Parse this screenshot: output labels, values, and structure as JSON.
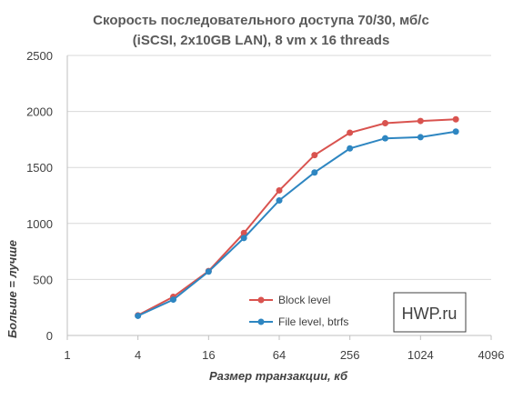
{
  "chart_data": {
    "type": "line",
    "title": [
      "Скорость последовательного доступа 70/30, мб/с",
      "(iSCSI, 2x10GB LAN), 8 vm x 16 threads"
    ],
    "xlabel": "Размер транзакции, кб",
    "ylabel": "Больше = лучше",
    "x_scale": "log2",
    "xlim": [
      1,
      4096
    ],
    "x_ticks": [
      1,
      4,
      16,
      64,
      256,
      1024,
      4096
    ],
    "x_tick_labels": [
      "1",
      "4",
      "16",
      "64",
      "256",
      "1024",
      "4096"
    ],
    "ylim": [
      0,
      2500
    ],
    "y_ticks": [
      0,
      500,
      1000,
      1500,
      2000,
      2500
    ],
    "y_tick_labels": [
      "0",
      "500",
      "1000",
      "1500",
      "2000",
      "2500"
    ],
    "grid": "horizontal",
    "legend": "bottom-center",
    "x": [
      4,
      8,
      16,
      32,
      64,
      128,
      256,
      512,
      1024,
      2048
    ],
    "series": [
      {
        "name": "Block level",
        "color": "#d9534f",
        "values": [
          180,
          345,
          575,
          915,
          1295,
          1610,
          1810,
          1895,
          1915,
          1930
        ]
      },
      {
        "name": "File level, btrfs",
        "color": "#2e86c1",
        "values": [
          175,
          320,
          570,
          870,
          1205,
          1455,
          1670,
          1760,
          1770,
          1820
        ]
      }
    ]
  },
  "watermark": "HWP.ru"
}
